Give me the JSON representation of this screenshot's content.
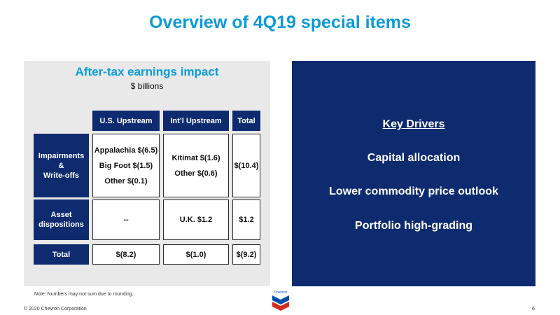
{
  "slide": {
    "title": "Overview of 4Q19 special items",
    "note": "Note: Numbers may not sum due to rounding.",
    "copyright": "© 2020 Chevron Corporation",
    "page_number": "6",
    "logo_text": "Chevron"
  },
  "table": {
    "heading": "After-tax earnings impact",
    "subheading": "$ billions",
    "columns": [
      "U.S. Upstream",
      "Int’l Upstream",
      "Total"
    ],
    "rows": [
      {
        "label_lines": [
          "Impairments",
          "&",
          "Write-offs"
        ],
        "us": [
          "Appalachia $(6.5)",
          "Big Foot $(1.5)",
          "Other $(0.1)"
        ],
        "intl": [
          "Kitimat $(1.6)",
          "Other $(0.6)"
        ],
        "total": "$(10.4)"
      },
      {
        "label_lines": [
          "Asset",
          "dispositions"
        ],
        "us": [
          "--"
        ],
        "intl": [
          "U.K. $1.2"
        ],
        "total": "$1.2"
      },
      {
        "label_lines": [
          "Total"
        ],
        "us": [
          "$(8.2)"
        ],
        "intl": [
          "$(1.0)"
        ],
        "total": "$(9.2)"
      }
    ]
  },
  "drivers": {
    "heading": "Key Drivers",
    "items": [
      "Capital allocation",
      "Lower commodity price outlook",
      "Portfolio high-grading"
    ]
  },
  "colors": {
    "title_blue": "#0b9bd7",
    "navy": "#0e2b6f",
    "panel_gray": "#e9e9e9",
    "logo_red": "#d52b1e",
    "logo_blue": "#0050aa"
  }
}
